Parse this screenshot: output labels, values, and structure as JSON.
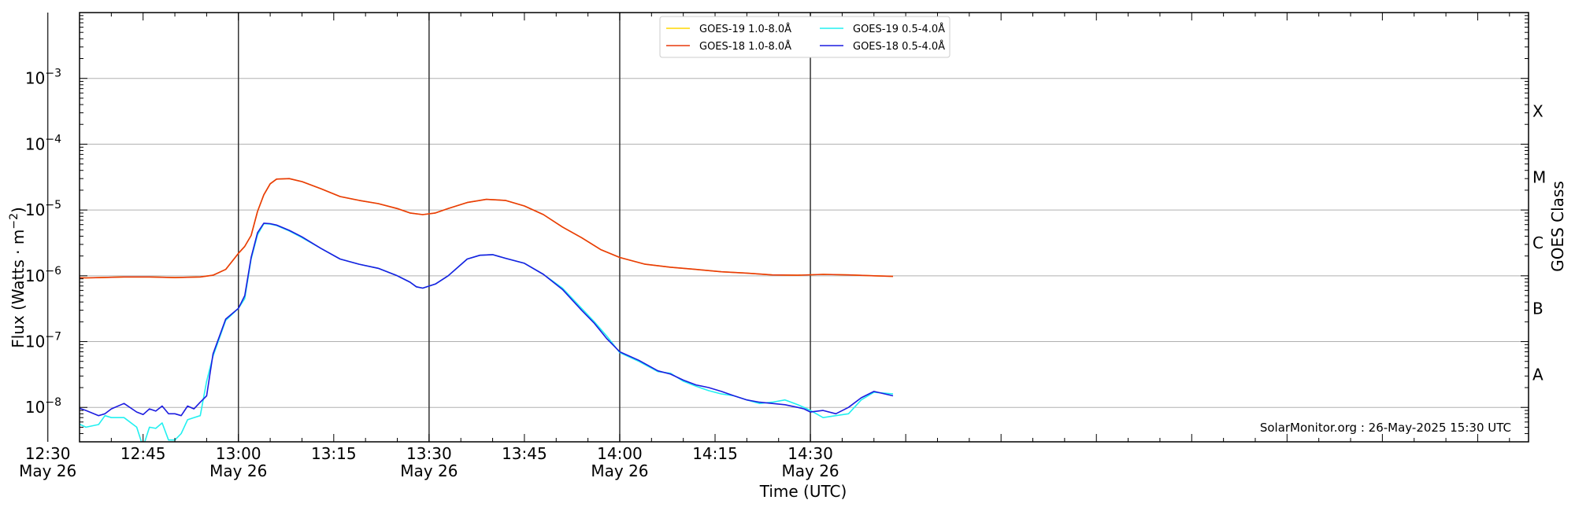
{
  "chart_data": {
    "type": "line",
    "xlabel": "Time (UTC)",
    "ylabel_parts": [
      "Flux (Watts · m",
      "−2",
      ")"
    ],
    "right_label": "GOES Class",
    "credit": "SolarMonitor.org : 26-May-2025 15:30 UTC",
    "y_scale": "log",
    "ylim": [
      3e-09,
      0.01
    ],
    "y_ticks": [
      {
        "value": 1e-08,
        "base": "10",
        "exp": "−8"
      },
      {
        "value": 1e-07,
        "base": "10",
        "exp": "−7"
      },
      {
        "value": 1e-06,
        "base": "10",
        "exp": "−6"
      },
      {
        "value": 1e-05,
        "base": "10",
        "exp": "−5"
      },
      {
        "value": 0.0001,
        "base": "10",
        "exp": "−4"
      },
      {
        "value": 0.001,
        "base": "10",
        "exp": "−3"
      }
    ],
    "goes_classes": [
      {
        "label": "A",
        "value": 3.16e-08
      },
      {
        "label": "B",
        "value": 3.16e-07
      },
      {
        "label": "C",
        "value": 3.16e-06
      },
      {
        "label": "M",
        "value": 3.16e-05
      },
      {
        "label": "X",
        "value": 0.000316
      }
    ],
    "x_range_minutes": [
      755,
      983
    ],
    "x_ticks": [
      {
        "minute": 750,
        "time": "12:30",
        "date": "May 26"
      },
      {
        "minute": 765,
        "time": "12:45",
        "date": ""
      },
      {
        "minute": 780,
        "time": "13:00",
        "date": "May 26"
      },
      {
        "minute": 795,
        "time": "13:15",
        "date": ""
      },
      {
        "minute": 810,
        "time": "13:30",
        "date": "May 26"
      },
      {
        "minute": 825,
        "time": "13:45",
        "date": ""
      },
      {
        "minute": 840,
        "time": "14:00",
        "date": "May 26"
      },
      {
        "minute": 855,
        "time": "14:15",
        "date": ""
      },
      {
        "minute": 870,
        "time": "14:30",
        "date": "May 26"
      }
    ],
    "vlines_minutes": [
      750,
      780,
      810,
      840,
      870
    ],
    "legend": {
      "placement": "top-center"
    },
    "series": [
      {
        "name": "GOES-19 1.0-8.0Å",
        "color": "#ffd700",
        "legend_order": 0,
        "x": [
          748,
          756,
          762,
          766,
          770,
          774,
          776,
          778,
          780,
          781,
          782,
          783,
          784,
          785,
          786,
          788,
          790,
          793,
          796,
          799,
          802,
          805,
          807,
          809,
          811,
          813,
          816,
          819,
          822,
          825,
          828,
          831,
          834,
          837,
          840,
          844,
          848,
          852,
          856,
          860,
          864,
          868,
          872,
          876,
          880,
          883
        ],
        "y": [
          9.8e-07,
          9.3e-07,
          9.6e-07,
          9.6e-07,
          9.4e-07,
          9.6e-07,
          1.02e-06,
          1.25e-06,
          2.2e-06,
          2.8e-06,
          4.1e-06,
          9.5e-06,
          1.7e-05,
          2.5e-05,
          2.95e-05,
          3e-05,
          2.7e-05,
          2.1e-05,
          1.6e-05,
          1.4e-05,
          1.25e-05,
          1.05e-05,
          9e-06,
          8.5e-06,
          9e-06,
          1.05e-05,
          1.3e-05,
          1.45e-05,
          1.4e-05,
          1.15e-05,
          8.5e-06,
          5.5e-06,
          3.8e-06,
          2.5e-06,
          1.9e-06,
          1.5e-06,
          1.35e-06,
          1.25e-06,
          1.15e-06,
          1.1e-06,
          1.03e-06,
          1.02e-06,
          1.05e-06,
          1.03e-06,
          1e-06,
          9.8e-07
        ]
      },
      {
        "name": "GOES-18 1.0-8.0Å",
        "color": "#e8380c",
        "legend_order": 1,
        "x": [
          748,
          756,
          762,
          766,
          770,
          774,
          776,
          778,
          780,
          781,
          782,
          783,
          784,
          785,
          786,
          788,
          790,
          793,
          796,
          799,
          802,
          805,
          807,
          809,
          811,
          813,
          816,
          819,
          822,
          825,
          828,
          831,
          834,
          837,
          840,
          844,
          848,
          852,
          856,
          860,
          864,
          868,
          872,
          876,
          880,
          883
        ],
        "y": [
          9.8e-07,
          9.3e-07,
          9.6e-07,
          9.6e-07,
          9.4e-07,
          9.6e-07,
          1.02e-06,
          1.25e-06,
          2.2e-06,
          2.8e-06,
          4.1e-06,
          9.5e-06,
          1.7e-05,
          2.5e-05,
          2.95e-05,
          3e-05,
          2.7e-05,
          2.1e-05,
          1.6e-05,
          1.4e-05,
          1.25e-05,
          1.05e-05,
          9e-06,
          8.5e-06,
          9e-06,
          1.05e-05,
          1.3e-05,
          1.45e-05,
          1.4e-05,
          1.15e-05,
          8.5e-06,
          5.5e-06,
          3.8e-06,
          2.5e-06,
          1.9e-06,
          1.5e-06,
          1.35e-06,
          1.25e-06,
          1.15e-06,
          1.1e-06,
          1.03e-06,
          1.02e-06,
          1.05e-06,
          1.03e-06,
          1e-06,
          9.8e-07
        ]
      },
      {
        "name": "GOES-19 0.5-4.0Å",
        "color": "#22f0f0",
        "legend_order": 2,
        "x": [
          748,
          749,
          750,
          752,
          754,
          756,
          758,
          759,
          760,
          762,
          764,
          765,
          766,
          767,
          768,
          769,
          770,
          771,
          772,
          773,
          774,
          775,
          776,
          778,
          780,
          781,
          782,
          783,
          784,
          785,
          786,
          788,
          790,
          793,
          796,
          799,
          802,
          805,
          807,
          808,
          809,
          811,
          813,
          816,
          818,
          820,
          822,
          825,
          828,
          831,
          834,
          836,
          838,
          840,
          843,
          846,
          848,
          850,
          852,
          854,
          856,
          858,
          860,
          862,
          864,
          866,
          868,
          869,
          870,
          872,
          874,
          876,
          878,
          880,
          883
        ],
        "y": [
          9e-09,
          8.5e-09,
          9.5e-09,
          7e-09,
          6.2e-09,
          5e-09,
          5.5e-09,
          7.5e-09,
          7e-09,
          7e-09,
          5e-09,
          2.5e-09,
          5e-09,
          4.8e-09,
          5.8e-09,
          3.2e-09,
          3.2e-09,
          4e-09,
          6.5e-09,
          7e-09,
          7.5e-09,
          2.5e-08,
          6e-08,
          2.1e-07,
          3.2e-07,
          4.5e-07,
          1.8e-06,
          4.2e-06,
          6.2e-06,
          6.1e-06,
          5.8e-06,
          4.8e-06,
          3.8e-06,
          2.6e-06,
          1.8e-06,
          1.5e-06,
          1.3e-06,
          1e-06,
          8e-07,
          6.8e-07,
          6.5e-07,
          7.5e-07,
          1e-06,
          1.8e-06,
          2.05e-06,
          2.1e-06,
          1.85e-06,
          1.55e-06,
          1.05e-06,
          6.5e-07,
          3.2e-07,
          2e-07,
          1.2e-07,
          6.8e-08,
          5e-08,
          3.5e-08,
          3.3e-08,
          2.5e-08,
          2.1e-08,
          1.8e-08,
          1.6e-08,
          1.5e-08,
          1.3e-08,
          1.15e-08,
          1.2e-08,
          1.3e-08,
          1.1e-08,
          1e-08,
          9e-09,
          7e-09,
          7.5e-09,
          8e-09,
          1.3e-08,
          1.7e-08,
          1.6e-08
        ]
      },
      {
        "name": "GOES-18 0.5-4.0Å",
        "color": "#1c1ce0",
        "legend_order": 3,
        "x": [
          748,
          749,
          750,
          752,
          754,
          756,
          758,
          759,
          760,
          762,
          764,
          765,
          766,
          767,
          768,
          769,
          770,
          771,
          772,
          773,
          774,
          775,
          776,
          778,
          780,
          781,
          782,
          783,
          784,
          785,
          786,
          788,
          790,
          793,
          796,
          799,
          802,
          805,
          807,
          808,
          809,
          811,
          813,
          816,
          818,
          820,
          822,
          825,
          828,
          831,
          834,
          836,
          838,
          840,
          843,
          846,
          848,
          850,
          852,
          854,
          856,
          858,
          860,
          862,
          864,
          866,
          868,
          869,
          870,
          872,
          874,
          876,
          878,
          880,
          883
        ],
        "y": [
          1.3e-08,
          1.1e-08,
          1.25e-08,
          1e-08,
          1.05e-08,
          9e-09,
          7.5e-09,
          8e-09,
          9.5e-09,
          1.15e-08,
          8.5e-09,
          7.8e-09,
          9.5e-09,
          8.8e-09,
          1.05e-08,
          8e-09,
          8e-09,
          7.5e-09,
          1.05e-08,
          9.5e-09,
          1.2e-08,
          1.5e-08,
          6.5e-08,
          2.2e-07,
          3.2e-07,
          5e-07,
          1.9e-06,
          4.5e-06,
          6.3e-06,
          6.2e-06,
          5.9e-06,
          4.9e-06,
          3.9e-06,
          2.6e-06,
          1.8e-06,
          1.5e-06,
          1.3e-06,
          1e-06,
          8e-07,
          6.8e-07,
          6.5e-07,
          7.5e-07,
          1e-06,
          1.8e-06,
          2.05e-06,
          2.1e-06,
          1.85e-06,
          1.55e-06,
          1.05e-06,
          6.2e-07,
          3e-07,
          1.9e-07,
          1.1e-07,
          7e-08,
          5.2e-08,
          3.6e-08,
          3.2e-08,
          2.6e-08,
          2.2e-08,
          2e-08,
          1.75e-08,
          1.5e-08,
          1.3e-08,
          1.2e-08,
          1.15e-08,
          1.1e-08,
          1e-08,
          9.5e-09,
          8.5e-09,
          9e-09,
          8e-09,
          1e-08,
          1.4e-08,
          1.75e-08,
          1.5e-08
        ]
      }
    ]
  }
}
